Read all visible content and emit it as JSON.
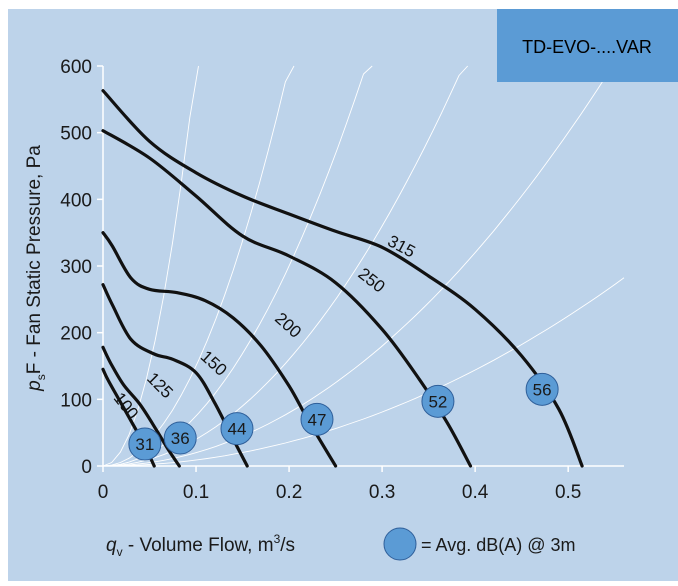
{
  "colors": {
    "background": "#bdd3ea",
    "badge_fill": "#5b9bd5",
    "badge_text": "#1a1a1a",
    "marker_fill": "#5b9bd5",
    "marker_stroke": "#2f5f9a",
    "curve": "#111111",
    "axis": "#ffffff",
    "system_curve": "#ffffff"
  },
  "header": {
    "badge_text": "TD-EVO-....VAR"
  },
  "legend": {
    "marker_text": "= Avg. dB(A) @ 3m"
  },
  "chart_data": {
    "type": "line",
    "title": "",
    "ylabel": {
      "italic_prefix": "p",
      "subscript": "s",
      "text": "F - Fan Static Pressure, Pa"
    },
    "xlabel": {
      "italic_prefix": "q",
      "subscript": "v",
      "text": " - Volume Flow, m",
      "superscript": "3",
      "suffix": "/s"
    },
    "xlim": [
      0,
      0.56
    ],
    "ylim": [
      0,
      600
    ],
    "xticks": [
      0,
      0.1,
      0.2,
      0.3,
      0.4,
      0.5
    ],
    "xtick_labels": [
      "0",
      "0.1",
      "0.2",
      "0.3",
      "0.4",
      "0.5"
    ],
    "yticks": [
      0,
      100,
      200,
      300,
      400,
      500,
      600
    ],
    "ytick_labels": [
      "0",
      "100",
      "200",
      "300",
      "400",
      "500",
      "600"
    ],
    "grid": false,
    "series": [
      {
        "name": "100",
        "points": [
          [
            0,
            145
          ],
          [
            0.005,
            130
          ],
          [
            0.015,
            105
          ],
          [
            0.03,
            68
          ],
          [
            0.045,
            30
          ],
          [
            0.055,
            0
          ]
        ]
      },
      {
        "name": "125",
        "points": [
          [
            0,
            178
          ],
          [
            0.008,
            155
          ],
          [
            0.022,
            122
          ],
          [
            0.04,
            92
          ],
          [
            0.057,
            55
          ],
          [
            0.07,
            25
          ],
          [
            0.082,
            0
          ]
        ]
      },
      {
        "name": "150",
        "points": [
          [
            0,
            272
          ],
          [
            0.01,
            242
          ],
          [
            0.03,
            190
          ],
          [
            0.055,
            168
          ],
          [
            0.075,
            160
          ],
          [
            0.1,
            140
          ],
          [
            0.12,
            95
          ],
          [
            0.14,
            40
          ],
          [
            0.155,
            0
          ]
        ]
      },
      {
        "name": "200",
        "points": [
          [
            0,
            350
          ],
          [
            0.01,
            330
          ],
          [
            0.03,
            282
          ],
          [
            0.05,
            265
          ],
          [
            0.08,
            260
          ],
          [
            0.11,
            248
          ],
          [
            0.14,
            222
          ],
          [
            0.17,
            180
          ],
          [
            0.2,
            120
          ],
          [
            0.22,
            70
          ],
          [
            0.25,
            0
          ]
        ]
      },
      {
        "name": "250",
        "points": [
          [
            0,
            503
          ],
          [
            0.05,
            462
          ],
          [
            0.1,
            405
          ],
          [
            0.15,
            345
          ],
          [
            0.2,
            315
          ],
          [
            0.25,
            275
          ],
          [
            0.3,
            205
          ],
          [
            0.34,
            130
          ],
          [
            0.37,
            65
          ],
          [
            0.395,
            0
          ]
        ]
      },
      {
        "name": "315",
        "points": [
          [
            0,
            563
          ],
          [
            0.05,
            487
          ],
          [
            0.1,
            440
          ],
          [
            0.15,
            405
          ],
          [
            0.2,
            378
          ],
          [
            0.25,
            352
          ],
          [
            0.3,
            328
          ],
          [
            0.35,
            285
          ],
          [
            0.4,
            235
          ],
          [
            0.45,
            165
          ],
          [
            0.49,
            85
          ],
          [
            0.515,
            0
          ]
        ]
      }
    ],
    "curve_labels": [
      {
        "text": "100",
        "x": 0.02,
        "y": 85
      },
      {
        "text": "125",
        "x": 0.057,
        "y": 115
      },
      {
        "text": "150",
        "x": 0.115,
        "y": 148
      },
      {
        "text": "200",
        "x": 0.195,
        "y": 205
      },
      {
        "text": "250",
        "x": 0.285,
        "y": 272
      },
      {
        "text": "315",
        "x": 0.318,
        "y": 322
      }
    ],
    "noise_markers": [
      {
        "label": "31",
        "x": 0.045,
        "y": 33
      },
      {
        "label": "36",
        "x": 0.083,
        "y": 42
      },
      {
        "label": "44",
        "x": 0.144,
        "y": 56
      },
      {
        "label": "47",
        "x": 0.23,
        "y": 70
      },
      {
        "label": "52",
        "x": 0.36,
        "y": 97
      },
      {
        "label": "56",
        "x": 0.472,
        "y": 115
      }
    ],
    "system_curves": [
      {
        "k": 60000
      },
      {
        "k": 15000
      },
      {
        "k": 7500
      },
      {
        "k": 4000
      },
      {
        "k": 2000
      },
      {
        "k": 900
      }
    ]
  }
}
